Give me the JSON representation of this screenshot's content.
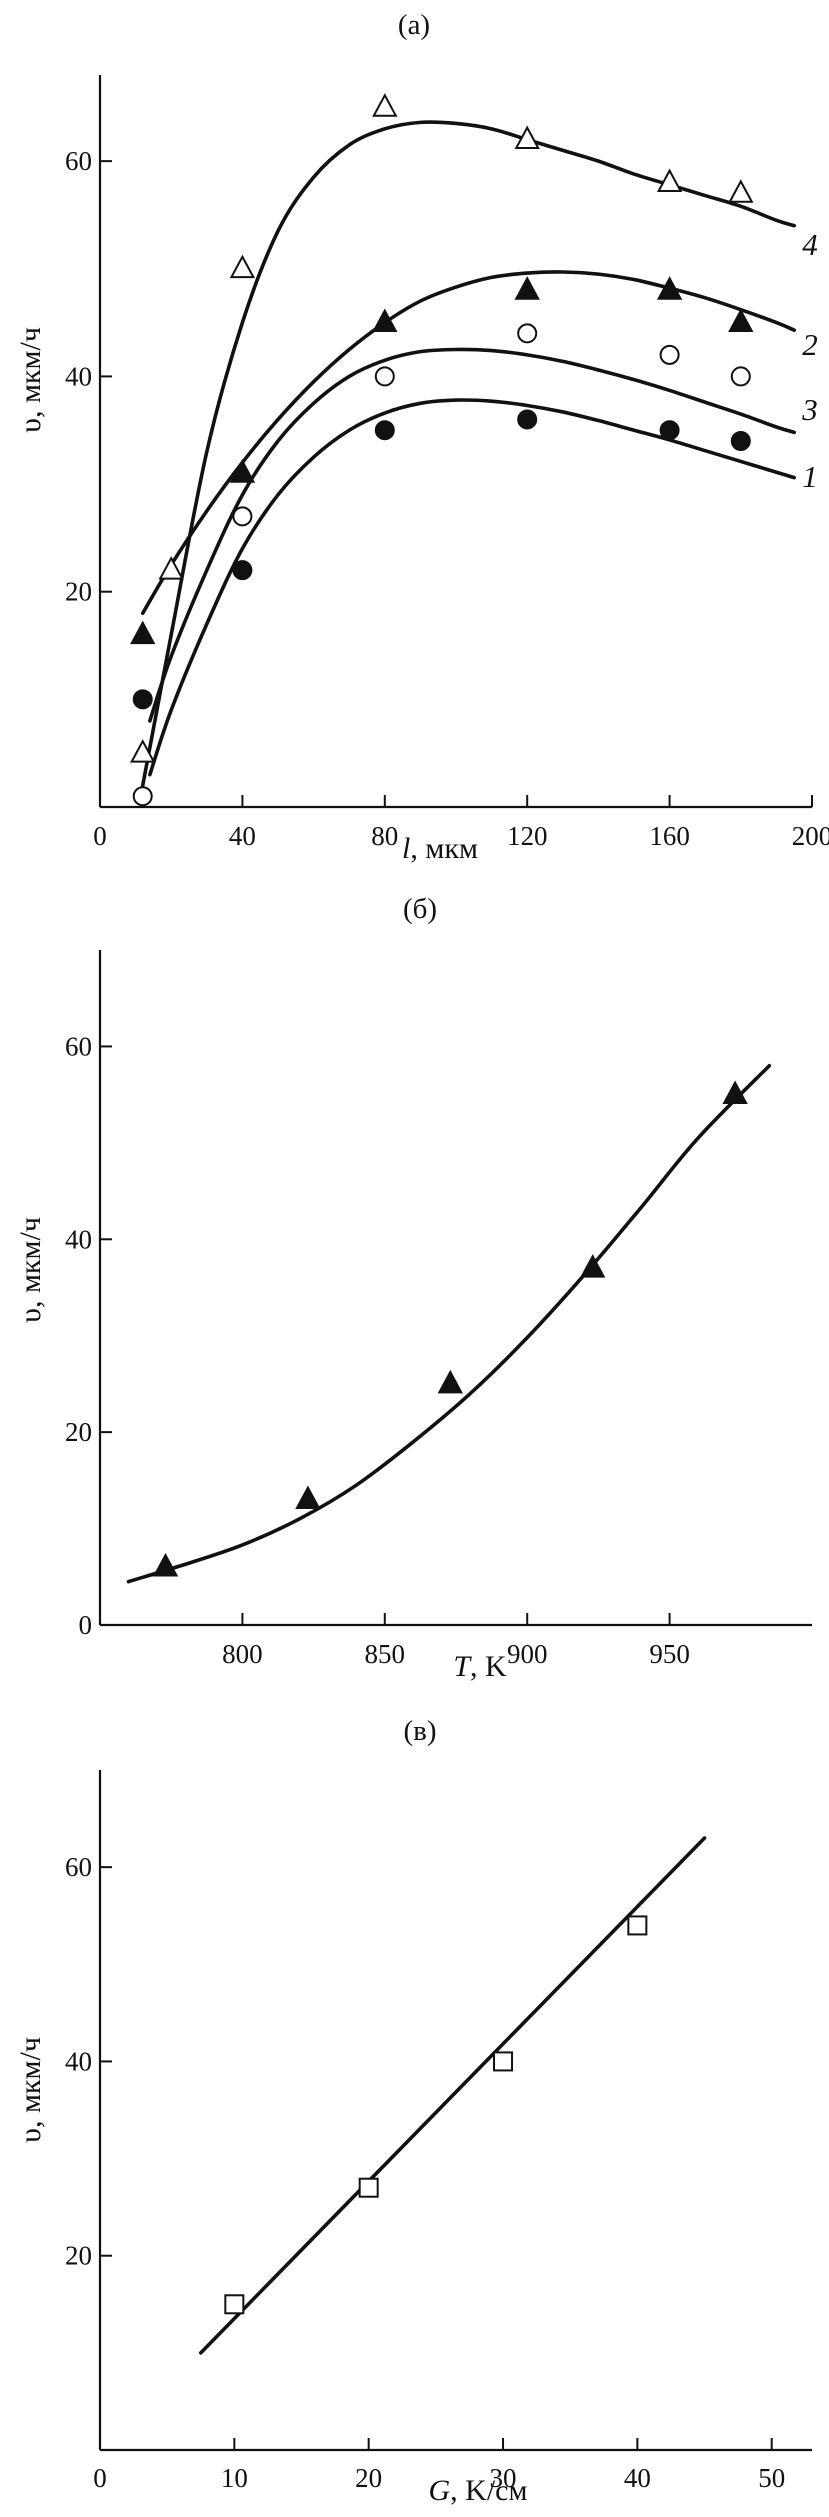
{
  "chart_data": [
    {
      "type": "scatter",
      "panel_label": "(а)",
      "xlabel_var": "l",
      "xlabel_unit": ", мкм",
      "ylabel": "υ, мкм/ч",
      "xlim": [
        0,
        200
      ],
      "ylim": [
        0,
        68
      ],
      "xticks": [
        0,
        40,
        80,
        120,
        160,
        200
      ],
      "yticks": [
        20,
        40,
        60
      ],
      "series": [
        {
          "name": "4",
          "marker": "triangle-open",
          "x": [
            12,
            20,
            40,
            80,
            120,
            160,
            180
          ],
          "y": [
            5,
            22,
            50,
            65,
            62,
            58,
            57
          ],
          "fit_x": [
            12,
            20,
            30,
            40,
            50,
            60,
            70,
            80,
            90,
            100,
            110,
            120,
            130,
            140,
            150,
            160,
            170,
            180,
            190,
            195
          ],
          "fit_y": [
            2,
            16,
            33,
            45,
            53.5,
            58.5,
            61.5,
            63,
            63.6,
            63.5,
            63,
            62,
            61,
            60,
            58.8,
            57.8,
            56.8,
            55.8,
            54.5,
            54
          ]
        },
        {
          "name": "2",
          "marker": "triangle-filled",
          "x": [
            12,
            40,
            80,
            120,
            160,
            180
          ],
          "y": [
            16,
            31,
            45,
            48,
            48,
            45
          ],
          "fit_x": [
            12,
            20,
            30,
            40,
            50,
            60,
            70,
            80,
            90,
            100,
            110,
            120,
            130,
            140,
            150,
            160,
            170,
            180,
            190,
            195
          ],
          "fit_y": [
            18,
            22.5,
            27.5,
            32,
            36,
            39.5,
            42.5,
            45,
            47,
            48.3,
            49.2,
            49.6,
            49.7,
            49.5,
            49,
            48.2,
            47.3,
            46.2,
            45,
            44.3
          ]
        },
        {
          "name": "3",
          "marker": "circle-open",
          "x": [
            12,
            40,
            80,
            120,
            160,
            180
          ],
          "y": [
            1,
            27,
            40,
            44,
            42,
            40
          ],
          "fit_x": [
            14,
            20,
            30,
            40,
            50,
            60,
            70,
            80,
            90,
            100,
            110,
            120,
            130,
            140,
            150,
            160,
            170,
            180,
            190,
            195
          ],
          "fit_y": [
            8,
            14,
            22,
            29,
            34,
            37.5,
            40,
            41.5,
            42.3,
            42.5,
            42.4,
            42,
            41.4,
            40.6,
            39.7,
            38.7,
            37.6,
            36.5,
            35.3,
            34.8
          ]
        },
        {
          "name": "1",
          "marker": "circle-filled",
          "x": [
            12,
            40,
            80,
            120,
            160,
            180
          ],
          "y": [
            10,
            22,
            35,
            36,
            35,
            34
          ],
          "fit_x": [
            14,
            20,
            30,
            40,
            50,
            60,
            70,
            80,
            90,
            100,
            110,
            120,
            130,
            140,
            150,
            160,
            170,
            180,
            190,
            195
          ],
          "fit_y": [
            3,
            9,
            17,
            24,
            29,
            32.5,
            35,
            36.6,
            37.5,
            37.8,
            37.7,
            37.3,
            36.7,
            35.9,
            35,
            34.1,
            33.1,
            32.1,
            31.1,
            30.6
          ]
        }
      ]
    },
    {
      "type": "scatter",
      "panel_label": "(б)",
      "xlabel_var": "T",
      "xlabel_unit": ", K",
      "ylabel": "υ, мкм/ч",
      "xlim": [
        750,
        1000
      ],
      "ylim": [
        0,
        70
      ],
      "xticks": [
        800,
        850,
        900,
        950
      ],
      "yticks": [
        0,
        20,
        40,
        60
      ],
      "series": [
        {
          "name": "",
          "marker": "triangle-filled",
          "x": [
            773,
            823,
            873,
            923,
            973
          ],
          "y": [
            6,
            13,
            25,
            37,
            55
          ],
          "fit_x": [
            760,
            780,
            800,
            820,
            840,
            860,
            880,
            900,
            920,
            940,
            960,
            985
          ],
          "fit_y": [
            4.5,
            6.3,
            8.3,
            11,
            14.5,
            19,
            24,
            29.8,
            36.3,
            43.3,
            50.5,
            58
          ]
        }
      ]
    },
    {
      "type": "scatter",
      "panel_label": "(в)",
      "xlabel_var": "G",
      "xlabel_unit": ", K/см",
      "ylabel": "υ, мкм/ч",
      "xlim": [
        0,
        53
      ],
      "ylim": [
        0,
        70
      ],
      "xticks": [
        0,
        10,
        20,
        30,
        40,
        50
      ],
      "yticks": [
        20,
        40,
        60
      ],
      "series": [
        {
          "name": "",
          "marker": "square-open",
          "x": [
            10,
            20,
            30,
            40
          ],
          "y": [
            15,
            27,
            40,
            54
          ],
          "fit_x": [
            7.5,
            45
          ],
          "fit_y": [
            10,
            63
          ]
        }
      ]
    }
  ]
}
